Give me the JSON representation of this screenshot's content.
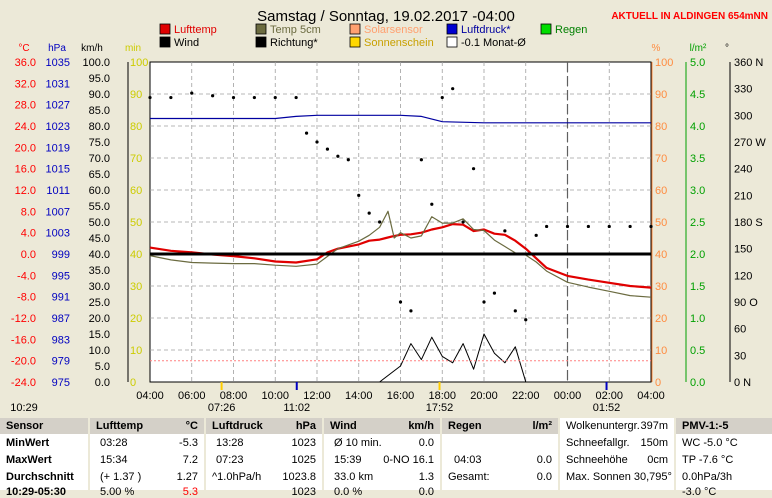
{
  "title": "Samstag / Sonntag, 19.02.2017  -04:00",
  "station": "AKTUELL IN ALDINGEN 654mNN",
  "colors": {
    "bg": "#ece9d8",
    "plot_bg": "#ffffff",
    "temp": "#e00000",
    "temp5cm": "#6b6b40",
    "wind": "#000000",
    "pressure": "#0000a0",
    "radiation": "#000000",
    "accent_red": "#ff0000",
    "green": "#00a000",
    "orange": "#ff8c40",
    "yellow": "#cccc00",
    "grey": "#808080"
  },
  "legend": [
    {
      "label": "Lufttemp",
      "color": "#e00000",
      "text_color": "#e00000"
    },
    {
      "label": "Temp 5cm",
      "color": "#6b6b40",
      "text_color": "#6b6b40"
    },
    {
      "label": "Solarsensor",
      "color": "#ffa070",
      "text_color": "#ffa070"
    },
    {
      "label": "Luftdruck*",
      "color": "#0000d0",
      "text_color": "#0000a0"
    },
    {
      "label": "Regen",
      "color": "#00dd00",
      "text_color": "#008000"
    },
    {
      "label": "Wind",
      "color": "#000000",
      "text_color": "#000000"
    },
    {
      "label": "Richtung*",
      "color": "#000000",
      "text_color": "#000000"
    },
    {
      "label": "Sonnenschein",
      "color": "#ffd800",
      "text_color": "#c8a000"
    },
    {
      "label": "-0.1 Monat-Ø",
      "color": "#ffffff",
      "text_color": "#000000"
    }
  ],
  "axes": {
    "units": {
      "celsius": "°C",
      "hpa": "hPa",
      "kmh": "km/h",
      "min": "min",
      "percent": "%",
      "lm2": "l/m²",
      "deg": "°"
    },
    "temp_ticks": [
      "36.0",
      "32.0",
      "28.0",
      "24.0",
      "20.0",
      "16.0",
      "12.0",
      "8.0",
      "4.0",
      "0.0",
      "-4.0",
      "-8.0",
      "-12.0",
      "-16.0",
      "-20.0",
      "-24.0"
    ],
    "hpa_ticks": [
      "1035",
      "1031",
      "1027",
      "1023",
      "1019",
      "1015",
      "1011",
      "1007",
      "1003",
      "999",
      "995",
      "991",
      "987",
      "983",
      "979",
      "975"
    ],
    "kmh_ticks": [
      "100.0",
      "95.0",
      "90.0",
      "85.0",
      "80.0",
      "75.0",
      "70.0",
      "65.0",
      "60.0",
      "55.0",
      "50.0",
      "45.0",
      "40.0",
      "35.0",
      "30.0",
      "25.0",
      "20.0",
      "15.0",
      "10.0",
      "5.0",
      "0.0"
    ],
    "min_ticks": [
      "100",
      "90",
      "80",
      "70",
      "60",
      "50",
      "40",
      "30",
      "20",
      "10",
      "0"
    ],
    "percent_ticks": [
      "100",
      "90",
      "80",
      "70",
      "60",
      "50",
      "40",
      "30",
      "20",
      "10",
      "0"
    ],
    "rain_ticks": [
      "5.0",
      "4.5",
      "4.0",
      "3.5",
      "3.0",
      "2.5",
      "2.0",
      "1.5",
      "1.0",
      "0.5",
      "0.0"
    ],
    "dir_ticks": [
      "360 N",
      "330",
      "300",
      "270 W",
      "240",
      "210",
      "180 S",
      "150",
      "120",
      "90 O",
      "60",
      "30",
      "0   N"
    ],
    "time_ticks": [
      "04:00",
      "06:00",
      "08:00",
      "10:00",
      "12:00",
      "14:00",
      "16:00",
      "18:00",
      "20:00",
      "22:00",
      "00:00",
      "02:00",
      "04:00"
    ]
  },
  "sun_markers": {
    "sunrise": "07:26",
    "noon": "11:02",
    "sunset": "17:52",
    "moon": "01:52",
    "left_time": "10:29"
  },
  "chart_data": {
    "type": "line",
    "x_unit": "hour (04:00 Saturday = 0 to 04:00 Sunday = 24)",
    "xlim": [
      0,
      24
    ],
    "series": [
      {
        "name": "Lufttemp",
        "axis": "°C",
        "ylim": [
          -24,
          36
        ],
        "x": [
          0,
          1,
          2,
          3,
          4,
          5,
          6,
          7,
          8,
          8.5,
          9,
          10,
          10.5,
          11,
          11.3,
          11.6,
          12,
          12.5,
          13,
          13.5,
          14,
          14.5,
          15,
          15.5,
          16,
          16.5,
          17,
          17.5,
          18,
          18.5,
          19,
          20,
          21,
          22,
          23,
          24
        ],
        "y": [
          1.2,
          0.6,
          0.3,
          -0.1,
          -0.4,
          -0.8,
          -1.4,
          -1.6,
          -1.0,
          0.3,
          1.0,
          1.8,
          2.5,
          2.7,
          3.0,
          3.3,
          3.6,
          3.7,
          4.0,
          4.6,
          5.0,
          5.6,
          5.5,
          4.3,
          4.6,
          3.8,
          3.6,
          2.5,
          1.0,
          -0.8,
          -2.6,
          -4.1,
          -4.8,
          -5.4,
          -6.0,
          -6.3
        ]
      },
      {
        "name": "Temp 5cm",
        "axis": "°C",
        "ylim": [
          -24,
          36
        ],
        "x": [
          0,
          1,
          2,
          3,
          4,
          5,
          6,
          7,
          8,
          9,
          10,
          10.5,
          11,
          11.4,
          11.7,
          12,
          12.5,
          13,
          13.5,
          14,
          14.5,
          15,
          15.5,
          16,
          16.5,
          17,
          17.5,
          18,
          18.5,
          19,
          20,
          21,
          22,
          23,
          24
        ],
        "y": [
          -0.3,
          -1.1,
          -1.6,
          -1.7,
          -1.8,
          -1.8,
          -2.1,
          -2.3,
          -1.9,
          1.0,
          2.4,
          3.5,
          5.0,
          8.0,
          3.0,
          4.0,
          3.0,
          3.4,
          7.0,
          5.8,
          5.8,
          6.6,
          4.6,
          4.4,
          2.6,
          1.4,
          0.2,
          -0.2,
          -1.5,
          -3.2,
          -5.3,
          -6.2,
          -7.0,
          -7.8,
          -8.1
        ]
      },
      {
        "name": "Luftdruck*",
        "axis": "hPa",
        "ylim": [
          975,
          1035
        ],
        "x": [
          0,
          2,
          3,
          4,
          4.5,
          5,
          6,
          7,
          8,
          8.5,
          9,
          10,
          11,
          12,
          13,
          14,
          16,
          18,
          20,
          22,
          24
        ],
        "y": [
          1024.4,
          1024.4,
          1024.4,
          1024.4,
          1024.4,
          1024.4,
          1024.4,
          1024.8,
          1025.0,
          1025.0,
          1025.0,
          1025.0,
          1025.0,
          1025.0,
          1024.8,
          1023.8,
          1023.6,
          1023.6,
          1023.6,
          1023.6,
          1023.6
        ]
      },
      {
        "name": "Wind",
        "axis": "km/h",
        "ylim": [
          0,
          100
        ],
        "x": [
          0,
          2,
          3,
          4,
          5,
          6,
          7,
          8,
          9,
          10,
          11,
          12,
          13,
          14,
          15,
          16,
          17,
          18,
          19,
          20,
          21,
          22,
          23,
          24
        ],
        "y": [
          40,
          40,
          40,
          40,
          40,
          40,
          40,
          40,
          40,
          40,
          40,
          40,
          40,
          40,
          40,
          40,
          40,
          40,
          40,
          40,
          40,
          40,
          40,
          40
        ]
      },
      {
        "name": "Richtung*",
        "axis": "°",
        "ylim": [
          0,
          360
        ],
        "x": [
          0,
          1,
          2,
          3,
          4,
          5,
          6,
          7,
          7.5,
          8,
          8.5,
          9,
          9.5,
          10,
          10.5,
          11,
          12,
          12.5,
          13,
          13.5,
          14,
          14.5,
          15,
          15.5,
          16,
          16.5,
          17,
          17.5,
          18,
          18.5,
          19,
          20,
          21,
          22,
          23,
          24
        ],
        "y": [
          320,
          320,
          325,
          322,
          320,
          320,
          320,
          320,
          280,
          270,
          262,
          254,
          250,
          210,
          190,
          180,
          90,
          80,
          250,
          200,
          320,
          330,
          180,
          240,
          90,
          100,
          170,
          80,
          70,
          165,
          175,
          175,
          175,
          175,
          175,
          175
        ]
      },
      {
        "name": "Sonnenschein",
        "axis": "min",
        "ylim": [
          0,
          100
        ],
        "x": [
          0,
          7,
          9,
          10,
          11,
          12,
          12.5,
          13,
          13.5,
          14,
          14.5,
          15,
          15.5,
          16,
          16.5,
          17,
          17.5,
          18,
          24
        ],
        "y": [
          0,
          0,
          0,
          0,
          0,
          5,
          12,
          7,
          14,
          8,
          6,
          12,
          4,
          15,
          9,
          6,
          11,
          0,
          0
        ]
      },
      {
        "name": "-0.1 Monat-Ø",
        "axis": "°C",
        "ylim": [
          -24,
          36
        ],
        "x": [
          0,
          24
        ],
        "y": [
          -20,
          -20
        ]
      }
    ]
  },
  "table": {
    "sensor": {
      "header": "Sensor",
      "rows": [
        "MinWert",
        "MaxWert",
        "Durchschnitt",
        "10:29-05:30"
      ]
    },
    "temp": {
      "header": "Lufttemp",
      "unit": "°C",
      "rows": [
        [
          "03:28",
          "-5.3"
        ],
        [
          "15:34",
          "7.2"
        ],
        [
          "(+ 1.37 )",
          "1.27"
        ],
        [
          "5.00 %",
          "5.3"
        ]
      ]
    },
    "pressure": {
      "header": "Luftdruck",
      "unit": "hPa",
      "rows": [
        [
          "13:28",
          "1023"
        ],
        [
          "07:23",
          "1025"
        ],
        [
          "^1.0hPa/h",
          "1023.8"
        ],
        [
          "",
          "1023"
        ]
      ]
    },
    "wind": {
      "header": "Wind",
      "unit": "km/h",
      "rows": [
        [
          "Ø 10 min.",
          "0.0"
        ],
        [
          "15:39",
          "0-NO 16.1"
        ],
        [
          "33.0 km",
          "1.3"
        ],
        [
          "0.0 %",
          "0.0"
        ]
      ]
    },
    "rain": {
      "header": "Regen",
      "unit": "l/m²",
      "rows": [
        [
          "",
          ""
        ],
        [
          "04:03",
          "0.0"
        ],
        [
          "Gesamt:",
          "0.0"
        ],
        [
          "",
          ""
        ]
      ]
    },
    "sky": {
      "rows": [
        [
          "Wolkenuntergr.",
          "397m"
        ],
        [
          "Schneefallgr.",
          "150m"
        ],
        [
          "Schneehöhe",
          "0cm"
        ],
        [
          "Max. Sonnen 30,795°",
          ""
        ]
      ]
    },
    "pmv": {
      "header": "PMV-1:-5",
      "rows": [
        "WC -5.0 °C",
        "TP -7.6 °C",
        "0.0hPa/3h",
        "-3.0 °C"
      ]
    }
  }
}
